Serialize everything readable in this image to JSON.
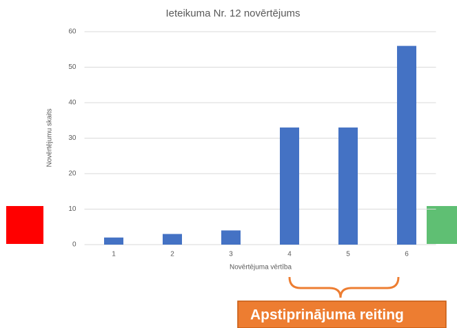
{
  "chart_data": {
    "type": "bar",
    "title": "Ieteikuma Nr. 12 novērtējums",
    "x_label": "Novērtējuma vērtība",
    "y_label": "Novērtējumu skaits",
    "categories": [
      "1",
      "2",
      "3",
      "4",
      "5",
      "6"
    ],
    "values": [
      2,
      3,
      4,
      33,
      33,
      56
    ],
    "color": "#4472c4",
    "ylim": [
      0,
      60
    ],
    "yticks": [
      0,
      10,
      20,
      30,
      40,
      50,
      60
    ],
    "grid": true,
    "annotation": "Apstiprinājuma reiting"
  }
}
